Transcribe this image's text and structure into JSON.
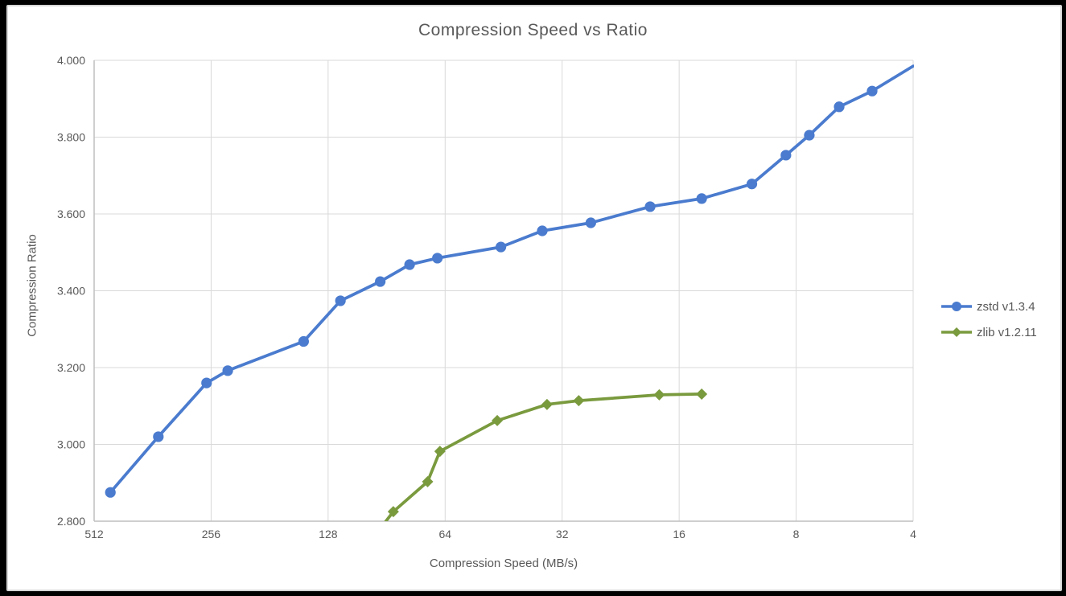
{
  "chart_data": {
    "type": "line",
    "title": "Compression Speed vs Ratio",
    "xlabel": "Compression Speed (MB/s)",
    "ylabel": "Compression Ratio",
    "x_scale": "log2_reversed",
    "xlim": [
      512,
      4
    ],
    "ylim": [
      2.8,
      4.0
    ],
    "grid": true,
    "legend_position": "right",
    "x_ticks": [
      512,
      256,
      128,
      64,
      32,
      16,
      8,
      4
    ],
    "x_tick_labels": [
      "512",
      "256",
      "128",
      "64",
      "32",
      "16",
      "8",
      "4"
    ],
    "y_ticks": [
      2.8,
      3.0,
      3.2,
      3.4,
      3.6,
      3.8,
      4.0
    ],
    "y_tick_labels": [
      "2.800",
      "3.000",
      "3.200",
      "3.400",
      "3.600",
      "3.800",
      "4.000"
    ],
    "colors": {
      "grid": "#D9D9D9",
      "axis": "#BFBFBF",
      "text": "#595959"
    },
    "series": [
      {
        "name": "zstd v1.3.4",
        "color": "#4A7BCE",
        "marker": "circle",
        "clipped_start": false,
        "clipped_end": true,
        "points": [
          [
            465,
            2.875
          ],
          [
            350,
            3.02
          ],
          [
            263,
            3.16
          ],
          [
            232,
            3.192
          ],
          [
            148,
            3.268
          ],
          [
            119,
            3.374
          ],
          [
            94,
            3.424
          ],
          [
            79,
            3.468
          ],
          [
            67,
            3.485
          ],
          [
            46,
            3.514
          ],
          [
            36,
            3.556
          ],
          [
            27,
            3.577
          ],
          [
            19,
            3.619
          ],
          [
            14,
            3.64
          ],
          [
            10.4,
            3.678
          ],
          [
            8.5,
            3.753
          ],
          [
            7.4,
            3.805
          ],
          [
            6.2,
            3.879
          ],
          [
            5.1,
            3.92
          ],
          [
            4.0,
            3.985
          ]
        ]
      },
      {
        "name": "zlib v1.2.11",
        "color": "#7A9A3E",
        "marker": "diamond",
        "clipped_start": true,
        "clipped_end": false,
        "points": [
          [
            100,
            2.746
          ],
          [
            87,
            2.825
          ],
          [
            71,
            2.903
          ],
          [
            66,
            2.982
          ],
          [
            47,
            3.062
          ],
          [
            35,
            3.104
          ],
          [
            29,
            3.114
          ],
          [
            18,
            3.129
          ],
          [
            14,
            3.131
          ]
        ]
      }
    ]
  }
}
